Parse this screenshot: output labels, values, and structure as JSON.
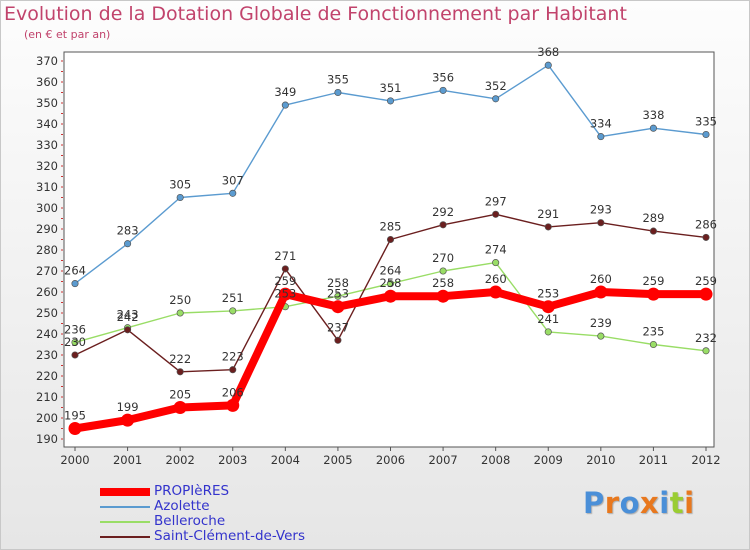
{
  "title": "Evolution de la Dotation Globale de Fonctionnement par Habitant",
  "subtitle": "(en € et par an)",
  "chart_data": {
    "type": "line",
    "title": "Evolution de la Dotation Globale de Fonctionnement par Habitant",
    "subtitle": "(en € et par an)",
    "x": [
      2000,
      2001,
      2002,
      2003,
      2004,
      2005,
      2006,
      2007,
      2008,
      2009,
      2010,
      2011,
      2012
    ],
    "x_tick_labels": [
      "2000",
      "2001",
      "2002",
      "2003",
      "2004",
      "2005",
      "2006",
      "2007",
      "2008",
      "2009",
      "2010",
      "2011",
      "2012"
    ],
    "ylim": [
      190,
      370
    ],
    "y_ticks": [
      190,
      200,
      210,
      220,
      230,
      240,
      250,
      260,
      270,
      280,
      290,
      300,
      310,
      320,
      330,
      340,
      350,
      360,
      370
    ],
    "grid": false,
    "legend_position": "bottom-left",
    "series": [
      {
        "name": "PROPIèRES",
        "color": "#ff0000",
        "values": [
          195,
          199,
          205,
          206,
          259,
          253,
          258,
          258,
          260,
          253,
          260,
          259,
          259
        ],
        "labels": [
          "195",
          "199",
          "205",
          "206",
          "259",
          "253",
          "258",
          "258",
          "260",
          "253",
          "260",
          "259",
          "259"
        ]
      },
      {
        "name": "Azolette",
        "color": "#5b9bd0",
        "values": [
          264,
          283,
          305,
          307,
          349,
          355,
          351,
          356,
          352,
          368,
          334,
          338,
          335
        ],
        "labels": [
          "264",
          "283",
          "305",
          "307",
          "349",
          "355",
          "351",
          "356",
          "352",
          "368",
          "334",
          "338",
          "335"
        ]
      },
      {
        "name": "Belleroche",
        "color": "#99dd66",
        "values": [
          236,
          243,
          250,
          251,
          253,
          258,
          264,
          270,
          274,
          241,
          239,
          235,
          232
        ],
        "labels": [
          "236",
          "243",
          "250",
          "251",
          "253",
          "258",
          "264",
          "270",
          "274",
          "241",
          "239",
          "235",
          "232"
        ]
      },
      {
        "name": "Saint-Clément-de-Vers",
        "color": "#6b1f1f",
        "values": [
          230,
          242,
          222,
          223,
          271,
          237,
          285,
          292,
          297,
          291,
          293,
          289,
          286
        ],
        "labels": [
          "230",
          "242",
          "222",
          "223",
          "271",
          "237",
          "285",
          "292",
          "297",
          "291",
          "293",
          "289",
          "286"
        ]
      }
    ]
  },
  "logo": {
    "letters": [
      "P",
      "r",
      "o",
      "x",
      "i",
      "t",
      "i"
    ],
    "colors": [
      "#4a8fd8",
      "#e8781e",
      "#4a8fd8",
      "#e8781e",
      "#4a8fd8",
      "#9acd32",
      "#e8781e"
    ]
  }
}
